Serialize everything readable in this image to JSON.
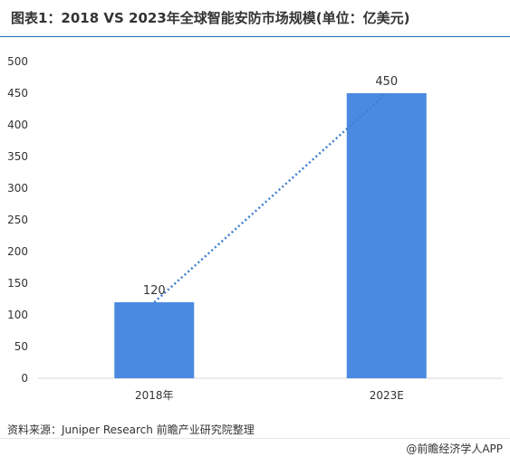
{
  "header": {
    "title": "图表1：2018 VS 2023年全球智能安防市场规模(单位：亿美元)"
  },
  "footer": {
    "source": "资料来源：Juniper Research 前瞻产业研究院整理",
    "brand": "@前瞻经济学人APP"
  },
  "chart_data": {
    "type": "bar",
    "title": "图表1：2018 VS 2023年全球智能安防市场规模(单位：亿美元)",
    "xlabel": "",
    "ylabel": "",
    "categories": [
      "2018年",
      "2023E"
    ],
    "values": [
      120,
      450
    ],
    "data_labels": [
      "120",
      "450"
    ],
    "ylim": [
      0,
      500
    ],
    "yticks": [
      0,
      50,
      100,
      150,
      200,
      250,
      300,
      350,
      400,
      450,
      500
    ],
    "grid": false,
    "legend": "none",
    "trendline": {
      "type": "linear",
      "style": "dotted"
    },
    "colors": {
      "bar": "#4a8ae0",
      "trendline": "#3f7fd0",
      "axis": "#d9d9d9"
    }
  }
}
